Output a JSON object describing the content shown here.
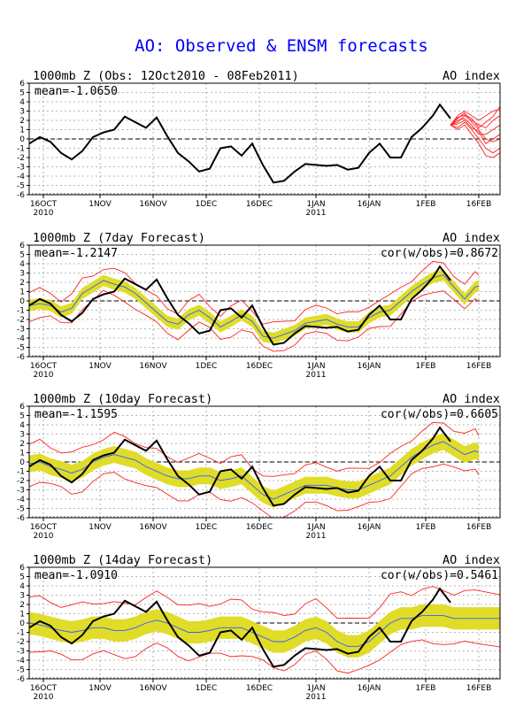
{
  "page_title": "AO: Observed & ENSM forecasts",
  "colors": {
    "title": "#0000ff",
    "observed": "#000000",
    "ensemble_member": "#ff2020",
    "ensemble_mean": "#3060ff",
    "spread_band": "#e0dc28",
    "grid": "#a0a0a0"
  },
  "chart_data": [
    {
      "type": "line",
      "title": "1000mb Z (Obs: 12Oct2010 - 08Feb2011)",
      "right_label": "AO index",
      "mean_label": "mean=-1.0650",
      "cor_label": "",
      "x_ticks": [
        {
          "label": "16OCT",
          "sub": "2010",
          "day": 4
        },
        {
          "label": "1NOV",
          "sub": "",
          "day": 20
        },
        {
          "label": "16NOV",
          "sub": "",
          "day": 35
        },
        {
          "label": "1DEC",
          "sub": "",
          "day": 50
        },
        {
          "label": "16DEC",
          "sub": "",
          "day": 65
        },
        {
          "label": "1JAN",
          "sub": "2011",
          "day": 81
        },
        {
          "label": "16JAN",
          "sub": "",
          "day": 96
        },
        {
          "label": "1FEB",
          "sub": "",
          "day": 112
        },
        {
          "label": "16FEB",
          "sub": "",
          "day": 127
        }
      ],
      "xlim": [
        0,
        133
      ],
      "ylim": [
        -6,
        6
      ],
      "y_ticks": [
        -6,
        -5,
        -4,
        -3,
        -2,
        -1,
        0,
        1,
        2,
        3,
        4,
        5,
        6
      ],
      "grid": true,
      "observed": {
        "days": [
          0,
          3,
          6,
          9,
          12,
          15,
          18,
          21,
          24,
          27,
          30,
          33,
          36,
          39,
          42,
          45,
          48,
          51,
          54,
          57,
          60,
          63,
          66,
          69,
          72,
          75,
          78,
          81,
          84,
          87,
          90,
          93,
          96,
          99,
          102,
          105,
          108,
          111,
          114,
          116,
          119
        ],
        "values": [
          -0.5,
          0.2,
          -0.3,
          -1.5,
          -2.2,
          -1.3,
          0.2,
          0.7,
          1.0,
          2.4,
          1.8,
          1.2,
          2.3,
          0.3,
          -1.5,
          -2.4,
          -3.5,
          -3.2,
          -1.0,
          -0.8,
          -1.8,
          -0.5,
          -2.8,
          -4.7,
          -4.5,
          -3.5,
          -2.7,
          -2.8,
          -2.9,
          -2.8,
          -3.3,
          -3.1,
          -1.5,
          -0.5,
          -2.0,
          -2.0,
          0.2,
          1.2,
          2.5,
          3.7,
          2.2
        ]
      },
      "forecast_members": {
        "start_day": 119,
        "days": [
          119,
          121,
          123,
          125,
          127,
          129,
          131,
          133
        ],
        "members": [
          [
            1.5,
            2.2,
            2.8,
            1.8,
            1.0,
            0.0,
            -0.3,
            0.0
          ],
          [
            1.5,
            1.8,
            2.5,
            2.0,
            1.5,
            1.2,
            2.0,
            2.5
          ],
          [
            1.5,
            1.2,
            1.8,
            1.0,
            0.0,
            -1.0,
            -1.5,
            -1.0
          ],
          [
            1.5,
            2.5,
            3.0,
            2.5,
            2.0,
            2.5,
            3.0,
            3.2
          ],
          [
            1.5,
            1.0,
            1.5,
            0.5,
            -0.5,
            -1.8,
            -2.0,
            -1.5
          ],
          [
            1.5,
            2.0,
            2.2,
            1.5,
            0.5,
            0.5,
            1.0,
            1.5
          ],
          [
            1.5,
            1.6,
            2.0,
            1.2,
            0.8,
            -0.5,
            0.0,
            0.5
          ],
          [
            1.5,
            2.3,
            2.6,
            2.2,
            1.2,
            1.8,
            2.4,
            3.5
          ]
        ]
      }
    },
    {
      "type": "line",
      "title": "1000mb Z (7day Forecast)",
      "right_label": "AO index",
      "mean_label": "mean=-1.2147",
      "cor_label": "cor(w/obs)=0.8672",
      "x_ticks": [
        {
          "label": "16OCT",
          "sub": "2010",
          "day": 4
        },
        {
          "label": "1NOV",
          "sub": "",
          "day": 20
        },
        {
          "label": "16NOV",
          "sub": "",
          "day": 35
        },
        {
          "label": "1DEC",
          "sub": "",
          "day": 50
        },
        {
          "label": "16DEC",
          "sub": "",
          "day": 65
        },
        {
          "label": "1JAN",
          "sub": "2011",
          "day": 81
        },
        {
          "label": "16JAN",
          "sub": "",
          "day": 96
        },
        {
          "label": "1FEB",
          "sub": "",
          "day": 112
        },
        {
          "label": "16FEB",
          "sub": "",
          "day": 127
        }
      ],
      "xlim": [
        0,
        133
      ],
      "ylim": [
        -6,
        6
      ],
      "y_ticks": [
        -6,
        -5,
        -4,
        -3,
        -2,
        -1,
        0,
        1,
        2,
        3,
        4,
        5,
        6
      ],
      "grid": true,
      "observed": {
        "days": [
          0,
          3,
          6,
          9,
          12,
          15,
          18,
          21,
          24,
          27,
          30,
          33,
          36,
          39,
          42,
          45,
          48,
          51,
          54,
          57,
          60,
          63,
          66,
          69,
          72,
          75,
          78,
          81,
          84,
          87,
          90,
          93,
          96,
          99,
          102,
          105,
          108,
          111,
          114,
          116,
          119
        ],
        "values": [
          -0.5,
          0.2,
          -0.3,
          -1.5,
          -2.2,
          -1.3,
          0.2,
          0.7,
          1.0,
          2.4,
          1.8,
          1.2,
          2.3,
          0.3,
          -1.5,
          -2.4,
          -3.5,
          -3.2,
          -1.0,
          -0.8,
          -1.8,
          -0.5,
          -2.8,
          -4.7,
          -4.5,
          -3.5,
          -2.7,
          -2.8,
          -2.9,
          -2.8,
          -3.3,
          -3.1,
          -1.5,
          -0.5,
          -2.0,
          -2.0,
          0.2,
          1.2,
          2.5,
          3.7,
          2.2
        ]
      },
      "ensemble": {
        "days": [
          0,
          3,
          6,
          9,
          12,
          15,
          18,
          21,
          24,
          27,
          30,
          33,
          36,
          39,
          42,
          45,
          48,
          51,
          54,
          57,
          60,
          63,
          66,
          69,
          72,
          75,
          78,
          81,
          84,
          87,
          90,
          93,
          96,
          99,
          102,
          105,
          108,
          111,
          114,
          117,
          120,
          123,
          126,
          127
        ],
        "mean": [
          -0.5,
          -0.3,
          -0.5,
          -1.2,
          -0.8,
          0.8,
          1.5,
          2.2,
          1.8,
          1.5,
          0.8,
          -0.2,
          -1.2,
          -2.2,
          -2.5,
          -1.5,
          -1.0,
          -1.8,
          -2.8,
          -2.2,
          -1.5,
          -2.2,
          -3.8,
          -4.0,
          -3.6,
          -3.2,
          -2.4,
          -2.2,
          -2.0,
          -2.5,
          -2.8,
          -2.8,
          -1.8,
          -1.2,
          -1.0,
          0.0,
          1.0,
          1.8,
          2.5,
          2.8,
          1.5,
          0.2,
          1.5,
          1.6
        ],
        "spread": 0.6,
        "outer_spread": 1.4
      }
    },
    {
      "type": "line",
      "title": "1000mb Z (10day Forecast)",
      "right_label": "AO index",
      "mean_label": "mean=-1.1595",
      "cor_label": "cor(w/obs)=0.6605",
      "x_ticks": [
        {
          "label": "16OCT",
          "sub": "2010",
          "day": 4
        },
        {
          "label": "1NOV",
          "sub": "",
          "day": 20
        },
        {
          "label": "16NOV",
          "sub": "",
          "day": 35
        },
        {
          "label": "1DEC",
          "sub": "",
          "day": 50
        },
        {
          "label": "16DEC",
          "sub": "",
          "day": 65
        },
        {
          "label": "1JAN",
          "sub": "2011",
          "day": 81
        },
        {
          "label": "16JAN",
          "sub": "",
          "day": 96
        },
        {
          "label": "1FEB",
          "sub": "",
          "day": 112
        },
        {
          "label": "16FEB",
          "sub": "",
          "day": 127
        }
      ],
      "xlim": [
        0,
        133
      ],
      "ylim": [
        -6,
        6
      ],
      "y_ticks": [
        -6,
        -5,
        -4,
        -3,
        -2,
        -1,
        0,
        1,
        2,
        3,
        4,
        5,
        6
      ],
      "grid": true,
      "observed": {
        "days": [
          0,
          3,
          6,
          9,
          12,
          15,
          18,
          21,
          24,
          27,
          30,
          33,
          36,
          39,
          42,
          45,
          48,
          51,
          54,
          57,
          60,
          63,
          66,
          69,
          72,
          75,
          78,
          81,
          84,
          87,
          90,
          93,
          96,
          99,
          102,
          105,
          108,
          111,
          114,
          116,
          119
        ],
        "values": [
          -0.5,
          0.2,
          -0.3,
          -1.5,
          -2.2,
          -1.3,
          0.2,
          0.7,
          1.0,
          2.4,
          1.8,
          1.2,
          2.3,
          0.3,
          -1.5,
          -2.4,
          -3.5,
          -3.2,
          -1.0,
          -0.8,
          -1.8,
          -0.5,
          -2.8,
          -4.7,
          -4.5,
          -3.5,
          -2.7,
          -2.8,
          -2.9,
          -2.8,
          -3.3,
          -3.1,
          -1.5,
          -0.5,
          -2.0,
          -2.0,
          0.2,
          1.2,
          2.5,
          3.7,
          2.2
        ]
      },
      "ensemble": {
        "days": [
          0,
          3,
          6,
          9,
          12,
          15,
          18,
          21,
          24,
          27,
          30,
          33,
          36,
          39,
          42,
          45,
          48,
          51,
          54,
          57,
          60,
          63,
          66,
          69,
          72,
          75,
          78,
          81,
          84,
          87,
          90,
          93,
          96,
          99,
          102,
          105,
          108,
          111,
          114,
          117,
          120,
          123,
          126,
          127
        ],
        "mean": [
          -0.2,
          0.0,
          -0.5,
          -0.8,
          -1.2,
          -0.8,
          0.0,
          0.5,
          0.8,
          0.5,
          0.2,
          -0.5,
          -1.0,
          -1.5,
          -1.8,
          -1.8,
          -1.5,
          -1.5,
          -2.0,
          -1.8,
          -1.5,
          -2.5,
          -3.5,
          -4.0,
          -3.5,
          -3.0,
          -2.5,
          -2.5,
          -2.5,
          -2.8,
          -3.0,
          -3.0,
          -2.5,
          -2.0,
          -1.5,
          -0.5,
          0.5,
          1.2,
          1.8,
          2.2,
          1.5,
          0.8,
          1.2,
          1.0
        ],
        "spread": 0.9,
        "outer_spread": 2.1
      }
    },
    {
      "type": "line",
      "title": "1000mb Z (14day Forecast)",
      "right_label": "AO index",
      "mean_label": "mean=-1.0910",
      "cor_label": "cor(w/obs)=0.5461",
      "x_ticks": [
        {
          "label": "16OCT",
          "sub": "2010",
          "day": 4
        },
        {
          "label": "1NOV",
          "sub": "",
          "day": 20
        },
        {
          "label": "16NOV",
          "sub": "",
          "day": 35
        },
        {
          "label": "1DEC",
          "sub": "",
          "day": 50
        },
        {
          "label": "16DEC",
          "sub": "",
          "day": 65
        },
        {
          "label": "1JAN",
          "sub": "2011",
          "day": 81
        },
        {
          "label": "16JAN",
          "sub": "",
          "day": 96
        },
        {
          "label": "1FEB",
          "sub": "",
          "day": 112
        },
        {
          "label": "16FEB",
          "sub": "",
          "day": 127
        }
      ],
      "xlim": [
        0,
        133
      ],
      "ylim": [
        -6,
        6
      ],
      "y_ticks": [
        -6,
        -5,
        -4,
        -3,
        -2,
        -1,
        0,
        1,
        2,
        3,
        4,
        5,
        6
      ],
      "grid": true,
      "observed": {
        "days": [
          0,
          3,
          6,
          9,
          12,
          15,
          18,
          21,
          24,
          27,
          30,
          33,
          36,
          39,
          42,
          45,
          48,
          51,
          54,
          57,
          60,
          63,
          66,
          69,
          72,
          75,
          78,
          81,
          84,
          87,
          90,
          93,
          96,
          99,
          102,
          105,
          108,
          111,
          114,
          116,
          119
        ],
        "values": [
          -0.5,
          0.2,
          -0.3,
          -1.5,
          -2.2,
          -1.3,
          0.2,
          0.7,
          1.0,
          2.4,
          1.8,
          1.2,
          2.3,
          0.3,
          -1.5,
          -2.4,
          -3.5,
          -3.2,
          -1.0,
          -0.8,
          -1.8,
          -0.5,
          -2.8,
          -4.7,
          -4.5,
          -3.5,
          -2.7,
          -2.8,
          -2.9,
          -2.8,
          -3.3,
          -3.1,
          -1.5,
          -0.5,
          -2.0,
          -2.0,
          0.2,
          1.2,
          2.5,
          3.7,
          2.2
        ]
      },
      "ensemble": {
        "days": [
          0,
          3,
          6,
          9,
          12,
          15,
          18,
          21,
          24,
          27,
          30,
          33,
          36,
          39,
          42,
          45,
          48,
          51,
          54,
          57,
          60,
          63,
          66,
          69,
          72,
          75,
          78,
          81,
          84,
          87,
          90,
          93,
          96,
          99,
          102,
          105,
          108,
          111,
          114,
          117,
          120,
          123,
          126,
          133
        ],
        "mean": [
          0.0,
          -0.2,
          -0.5,
          -0.8,
          -1.0,
          -0.8,
          -0.5,
          -0.5,
          -0.8,
          -0.8,
          -0.5,
          0.0,
          0.3,
          0.0,
          -0.5,
          -1.0,
          -1.0,
          -0.8,
          -0.5,
          -0.5,
          -0.5,
          -1.0,
          -1.5,
          -2.0,
          -2.0,
          -1.5,
          -0.8,
          -0.5,
          -1.0,
          -2.0,
          -2.5,
          -2.5,
          -2.0,
          -1.0,
          0.0,
          0.5,
          0.5,
          0.8,
          0.8,
          0.8,
          0.5,
          0.5,
          0.5,
          0.5
        ],
        "spread": 1.2,
        "outer_spread": 2.8
      }
    }
  ]
}
